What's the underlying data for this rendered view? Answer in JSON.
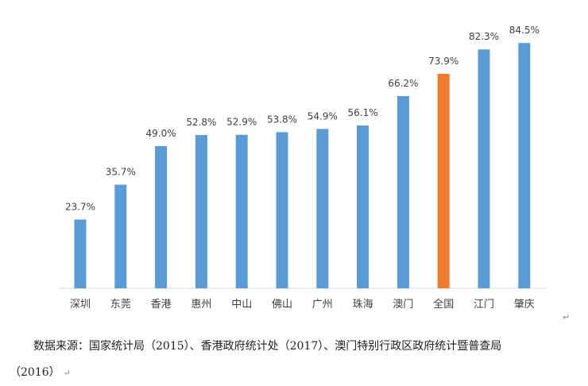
{
  "chart_data": {
    "type": "bar",
    "categories": [
      "深圳",
      "东莞",
      "香港",
      "惠州",
      "中山",
      "佛山",
      "广州",
      "珠海",
      "澳门",
      "全国",
      "江门",
      "肇庆"
    ],
    "values": [
      23.7,
      35.7,
      49.0,
      52.8,
      52.9,
      53.8,
      54.9,
      56.1,
      66.2,
      73.9,
      82.3,
      84.5
    ],
    "data_labels": [
      "23.7%",
      "35.7%",
      "49.0%",
      "52.8%",
      "52.9%",
      "53.8%",
      "54.9%",
      "56.1%",
      "66.2%",
      "73.9%",
      "82.3%",
      "84.5%"
    ],
    "highlight_category": "全国",
    "ylim": [
      0,
      100
    ],
    "grid": false,
    "legend": "none",
    "colors": {
      "default": "#5B9BD5",
      "highlight": "#ED7D31",
      "label": "#404040",
      "axis": "#d9d9d9"
    }
  },
  "source": {
    "line1": "数据来源：国家统计局（2015）、香港政府统计处（2017）、澳门特别行政区政府统计暨普查局",
    "line2": "（2016）"
  },
  "marks": {
    "paragraph": "↵"
  }
}
